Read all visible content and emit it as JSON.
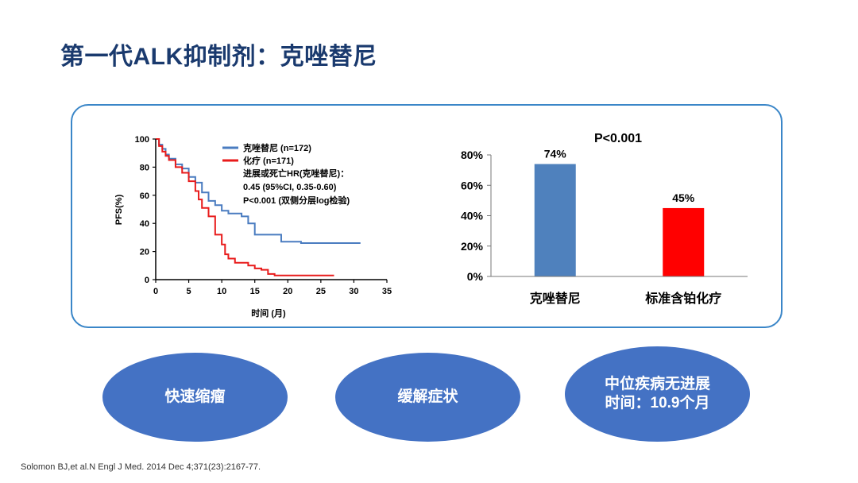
{
  "title": "第一代ALK抑制剂：克唑替尼",
  "km_chart": {
    "ylabel": "PFS(%)",
    "xlabel": "时间 (月)",
    "y_ticks": [
      "100",
      "80",
      "60",
      "40",
      "20",
      "0"
    ],
    "x_ticks": [
      "0",
      "5",
      "10",
      "15",
      "20",
      "25",
      "30",
      "35"
    ],
    "legend": [
      {
        "label": "克唑替尼 (n=172)",
        "color": "#4a7cc0"
      },
      {
        "label": "化疗 (n=171)",
        "color": "#e81b1b"
      }
    ],
    "annotation": [
      "进展或死亡HR(克唑替尼)：",
      "0.45 (95%CI, 0.35-0.60)",
      "P<0.001 (双侧分层log检验)"
    ]
  },
  "chart_data": [
    {
      "type": "line",
      "xlabel": "时间 (月)",
      "ylabel": "PFS(%)",
      "xlim": [
        0,
        35
      ],
      "ylim": [
        0,
        100
      ],
      "series": [
        {
          "name": "克唑替尼 (n=172)",
          "color": "#4a7cc0",
          "x": [
            0,
            0.5,
            1,
            1.5,
            2,
            3,
            4,
            5,
            6,
            7,
            8,
            9,
            10,
            11,
            13,
            14,
            15,
            18,
            19,
            22,
            31
          ],
          "y": [
            100,
            96,
            93,
            89,
            86,
            82,
            79,
            73,
            69,
            62,
            56,
            53,
            49,
            47,
            45,
            40,
            32,
            32,
            27,
            26,
            26
          ]
        },
        {
          "name": "化疗 (n=171)",
          "color": "#e81b1b",
          "x": [
            0,
            0.5,
            1,
            1.5,
            2,
            3,
            4,
            5,
            6,
            6.5,
            7,
            8,
            9,
            10,
            10.5,
            11,
            12,
            14,
            15,
            16,
            17,
            18,
            21,
            27
          ],
          "y": [
            100,
            95,
            91,
            88,
            85,
            80,
            76,
            70,
            63,
            57,
            51,
            45,
            32,
            25,
            18,
            15,
            12,
            10,
            8,
            7,
            4,
            3,
            3,
            3
          ]
        }
      ]
    },
    {
      "type": "bar",
      "title": "P<0.001",
      "categories": [
        "克唑替尼",
        "标准含铂化疗"
      ],
      "values": [
        74,
        45
      ],
      "labels": [
        "74%",
        "45%"
      ],
      "colors": [
        "#4f81bd",
        "#ff0000"
      ],
      "ylim": [
        0,
        80
      ],
      "y_ticks": [
        "80%",
        "60%",
        "40%",
        "20%",
        "0%"
      ]
    }
  ],
  "bubbles": [
    {
      "line1": "快速缩瘤",
      "line2": ""
    },
    {
      "line1": "缓解症状",
      "line2": ""
    },
    {
      "line1": "中位疾病无进展",
      "line2": "时间：10.9个月"
    }
  ],
  "citation": "Solomon BJ,et al.N Engl J Med. 2014 Dec 4;371(23):2167-77."
}
